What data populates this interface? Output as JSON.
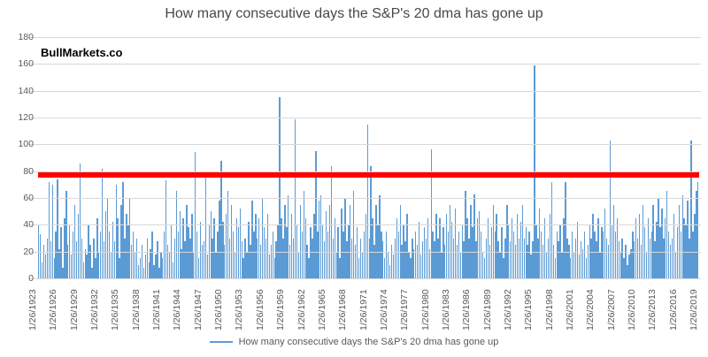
{
  "chart": {
    "title": "How many consecutive days the S&P's 20 dma has gone up",
    "watermark": "BullMarkets.co",
    "legend_label": "How many consecutive days the S&P's 20 dma has gone up",
    "colors": {
      "bars": "#5b9bd5",
      "threshold_line": "#ff0000",
      "gridline": "#d9d9d9",
      "axis_text": "#595959",
      "title_text": "#484848"
    }
  },
  "chart_data": {
    "type": "bar",
    "title": "How many consecutive days the S&P's 20 dma has gone up",
    "xlabel": "",
    "ylabel": "",
    "ylim": [
      0,
      180
    ],
    "y_ticks": [
      0,
      20,
      40,
      60,
      80,
      100,
      120,
      140,
      160,
      180
    ],
    "grid": true,
    "legend_position": "bottom",
    "legend": [
      "How many consecutive days the S&P's 20 dma has gone up"
    ],
    "x_range": [
      "1/26/1923",
      "1/26/2019"
    ],
    "points_per_year": 4,
    "x_tick_labels": [
      "1/26/1923",
      "1/26/1926",
      "1/26/1929",
      "1/26/1932",
      "1/26/1935",
      "1/26/1938",
      "1/26/1941",
      "1/26/1944",
      "1/26/1947",
      "1/26/1950",
      "1/26/1953",
      "1/26/1956",
      "1/26/1959",
      "1/26/1962",
      "1/26/1965",
      "1/26/1968",
      "1/26/1971",
      "1/26/1974",
      "1/26/1977",
      "1/26/1980",
      "1/26/1983",
      "1/26/1986",
      "1/26/1989",
      "1/26/1992",
      "1/26/1995",
      "1/26/1998",
      "1/26/2001",
      "1/26/2004",
      "1/26/2007",
      "1/26/2010",
      "1/26/2013",
      "1/26/2016",
      "1/26/2019"
    ],
    "threshold_line": {
      "value": 77,
      "color": "#ff0000"
    },
    "notable_peaks": [
      {
        "year": 1929,
        "value": 86
      },
      {
        "year": 1932,
        "value": 82
      },
      {
        "year": 1946,
        "value": 94
      },
      {
        "year": 1950,
        "value": 88
      },
      {
        "year": 1958,
        "value": 135
      },
      {
        "year": 1960,
        "value": 119
      },
      {
        "year": 1963,
        "value": 95
      },
      {
        "year": 1971,
        "value": 115
      },
      {
        "year": 1980,
        "value": 96
      },
      {
        "year": 1995,
        "value": 159
      },
      {
        "year": 2006,
        "value": 103
      },
      {
        "year": 2018,
        "value": 103
      }
    ],
    "values": [
      40,
      33,
      12,
      25,
      18,
      30,
      72,
      28,
      70,
      15,
      35,
      74,
      22,
      38,
      8,
      45,
      65,
      25,
      40,
      18,
      35,
      55,
      28,
      48,
      86,
      30,
      12,
      22,
      18,
      40,
      25,
      8,
      30,
      15,
      45,
      20,
      35,
      82,
      28,
      50,
      60,
      35,
      20,
      42,
      28,
      70,
      45,
      15,
      55,
      72,
      30,
      48,
      40,
      60,
      25,
      35,
      20,
      30,
      10,
      15,
      25,
      8,
      18,
      30,
      12,
      22,
      35,
      10,
      18,
      28,
      8,
      20,
      15,
      35,
      73,
      25,
      20,
      40,
      12,
      30,
      65,
      35,
      50,
      22,
      45,
      28,
      55,
      38,
      30,
      48,
      20,
      94,
      35,
      15,
      42,
      25,
      28,
      78,
      18,
      40,
      50,
      30,
      45,
      20,
      35,
      58,
      88,
      42,
      25,
      48,
      65,
      30,
      55,
      35,
      20,
      45,
      38,
      52,
      28,
      15,
      30,
      20,
      42,
      25,
      58,
      35,
      48,
      30,
      45,
      25,
      60,
      38,
      30,
      48,
      18,
      25,
      35,
      15,
      28,
      40,
      135,
      45,
      30,
      55,
      38,
      62,
      25,
      48,
      30,
      119,
      40,
      20,
      55,
      35,
      65,
      45,
      25,
      15,
      38,
      30,
      48,
      95,
      35,
      58,
      62,
      40,
      28,
      50,
      35,
      55,
      84,
      30,
      45,
      20,
      38,
      15,
      52,
      35,
      60,
      28,
      40,
      55,
      30,
      65,
      25,
      38,
      15,
      30,
      20,
      35,
      48,
      115,
      30,
      84,
      45,
      25,
      55,
      40,
      62,
      35,
      28,
      15,
      35,
      20,
      10,
      25,
      18,
      30,
      45,
      35,
      55,
      25,
      40,
      28,
      48,
      20,
      15,
      30,
      22,
      35,
      25,
      42,
      18,
      28,
      38,
      30,
      45,
      22,
      96,
      35,
      28,
      48,
      30,
      45,
      20,
      38,
      25,
      48,
      35,
      55,
      42,
      30,
      52,
      25,
      35,
      20,
      40,
      28,
      65,
      45,
      30,
      55,
      38,
      63,
      28,
      45,
      50,
      35,
      20,
      15,
      30,
      45,
      25,
      38,
      55,
      35,
      48,
      28,
      20,
      38,
      15,
      30,
      55,
      40,
      28,
      45,
      35,
      25,
      48,
      30,
      42,
      55,
      30,
      38,
      25,
      35,
      18,
      28,
      159,
      40,
      30,
      52,
      35,
      25,
      45,
      20,
      30,
      48,
      72,
      25,
      15,
      35,
      28,
      40,
      20,
      45,
      72,
      30,
      25,
      15,
      35,
      20,
      30,
      42,
      18,
      28,
      22,
      35,
      15,
      25,
      40,
      30,
      48,
      35,
      28,
      45,
      20,
      38,
      35,
      52,
      30,
      25,
      103,
      40,
      55,
      35,
      45,
      28,
      20,
      30,
      15,
      25,
      10,
      18,
      22,
      35,
      28,
      45,
      30,
      48,
      25,
      55,
      38,
      20,
      45,
      30,
      35,
      55,
      28,
      42,
      60,
      38,
      52,
      30,
      45,
      65,
      35,
      25,
      30,
      48,
      20,
      38,
      55,
      35,
      62,
      45,
      40,
      58,
      30,
      103,
      35,
      48,
      65,
      72
    ]
  }
}
